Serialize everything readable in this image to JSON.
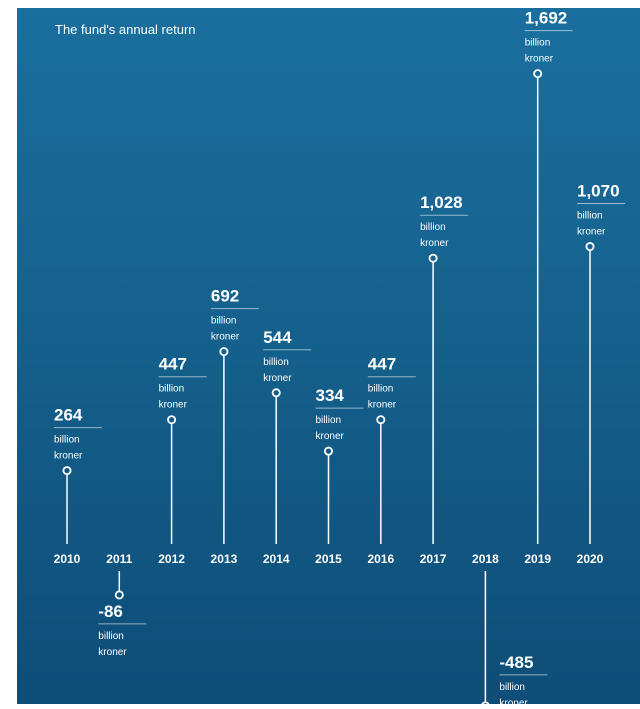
{
  "chart_data": {
    "type": "lollipop",
    "title": "The fund's annual return",
    "unit_line1": "billion",
    "unit_line2": "kroner",
    "categories": [
      "2010",
      "2011",
      "2012",
      "2013",
      "2014",
      "2015",
      "2016",
      "2017",
      "2018",
      "2019",
      "2020"
    ],
    "values": [
      264,
      -86,
      447,
      692,
      544,
      334,
      447,
      1028,
      -485,
      1692,
      1070
    ],
    "value_labels": [
      "264",
      "-86",
      "447",
      "692",
      "544",
      "334",
      "447",
      "1,028",
      "-485",
      "1,692",
      "1,070"
    ],
    "colors": {
      "background": "#15618d",
      "mark": "#ffffff"
    }
  }
}
